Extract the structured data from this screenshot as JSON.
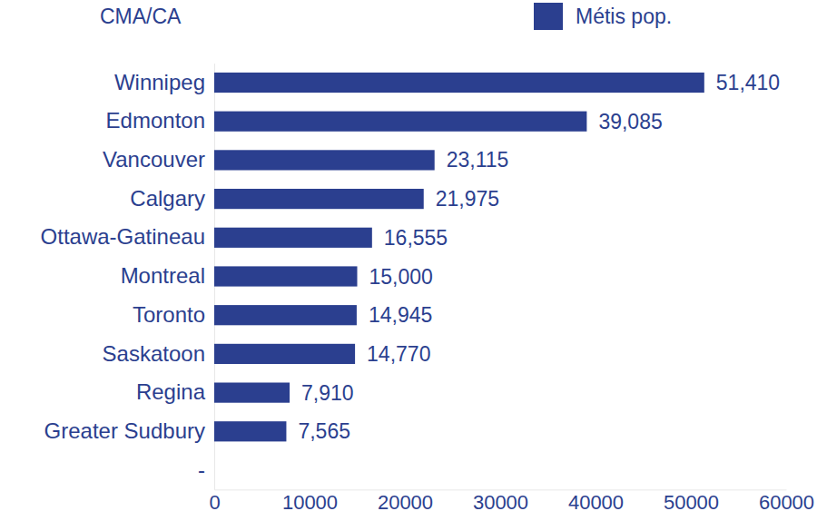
{
  "chart_data": {
    "type": "bar",
    "orientation": "horizontal",
    "y_label": "CMA/CA",
    "categories": [
      "Winnipeg",
      "Edmonton",
      "Vancouver",
      "Calgary",
      "Ottawa-Gatineau",
      "Montreal",
      "Toronto",
      "Saskatoon",
      "Regina",
      "Greater Sudbury",
      "-"
    ],
    "series": [
      {
        "name": "Métis pop.",
        "color": "#2b3f8f",
        "values": [
          51410,
          39085,
          23115,
          21975,
          16555,
          15000,
          14945,
          14770,
          7910,
          7565,
          null
        ],
        "value_labels": [
          "51,410",
          "39,085",
          "23,115",
          "21,975",
          "16,555",
          "15,000",
          "14,945",
          "14,770",
          "7,910",
          "7,565",
          null
        ]
      }
    ],
    "xlim": [
      0,
      60000
    ],
    "xticks": [
      0,
      10000,
      20000,
      30000,
      40000,
      50000,
      60000
    ],
    "grid": false,
    "legend": "top-right",
    "data_labels": true
  }
}
